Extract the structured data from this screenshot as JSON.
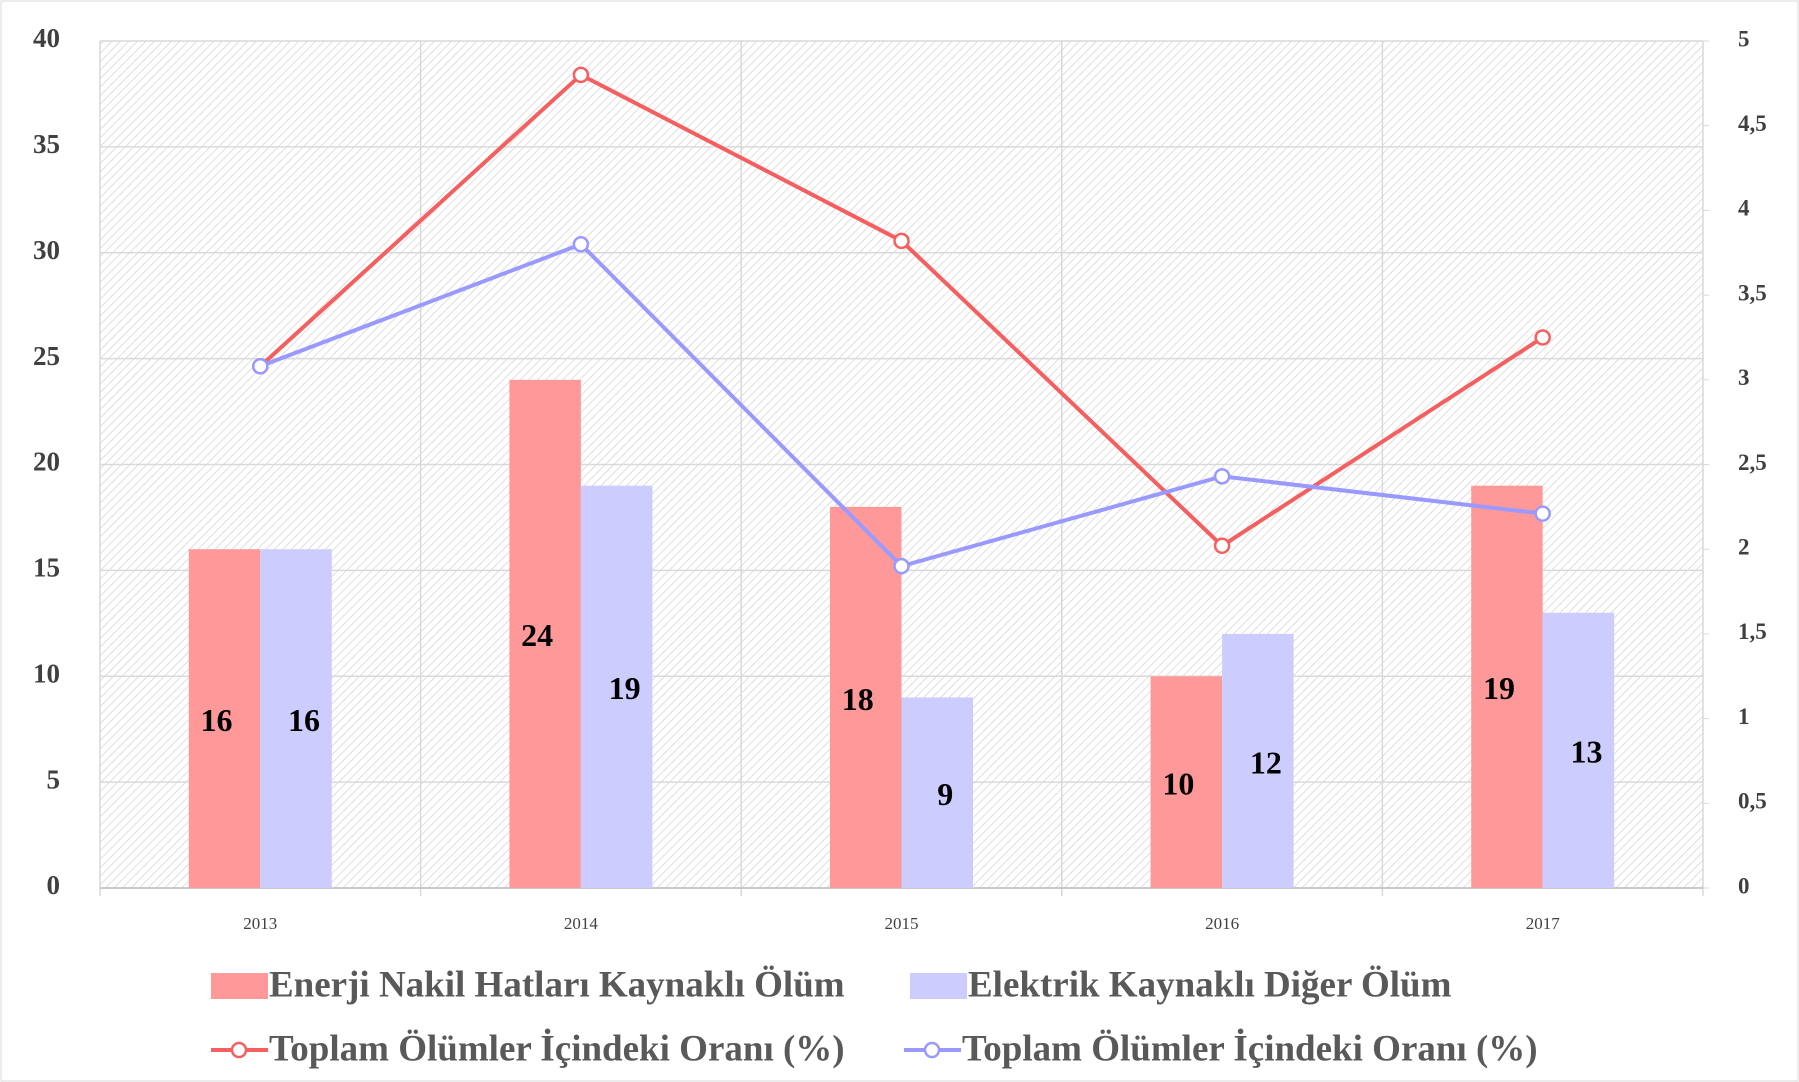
{
  "chart_data": {
    "type": "bar-line",
    "categories": [
      "2013",
      "2014",
      "2015",
      "2016",
      "2017"
    ],
    "series": [
      {
        "name": "Enerji Nakil Hatları Kaynaklı Ölüm",
        "color": "#ff9999",
        "type": "bar",
        "values": [
          16,
          24,
          18,
          10,
          19
        ]
      },
      {
        "name": "Elektrik Kaynaklı Diğer Ölüm",
        "color": "#ccccff",
        "type": "bar",
        "values": [
          16,
          19,
          9,
          12,
          13
        ]
      },
      {
        "name": "Toplam Ölümler İçindeki Oranı (%)",
        "color": "#f55f5f",
        "type": "line",
        "axis": "y2",
        "values": [
          3.08,
          4.8,
          3.82,
          2.02,
          3.25
        ]
      },
      {
        "name": "Toplam Ölümler İçindeki Oranı (%)",
        "color": "#9999ff",
        "type": "line",
        "axis": "y2",
        "values": [
          3.08,
          3.8,
          1.9,
          2.43,
          2.21
        ]
      }
    ],
    "ylim": [
      0,
      40
    ],
    "yticks": [
      0,
      5,
      10,
      15,
      20,
      25,
      30,
      35,
      40
    ],
    "y2lim": [
      0,
      5
    ],
    "y2ticks": [
      0,
      {
        "value": 0.5,
        "label": "0,5"
      },
      1,
      {
        "value": 1.5,
        "label": "1,5"
      },
      2,
      {
        "value": 2.5,
        "label": "2,5"
      },
      3,
      {
        "value": 3.5,
        "label": "3,5"
      },
      4,
      {
        "value": 4.5,
        "label": "4,5"
      },
      5
    ],
    "grid": true
  }
}
